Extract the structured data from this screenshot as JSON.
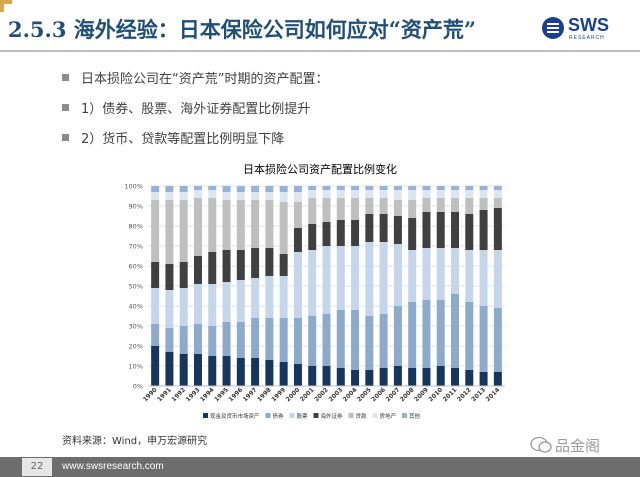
{
  "slide": {
    "title": "2.5.3 海外经验：日本保险公司如何应对“资产荒”",
    "brand": {
      "name": "SWS",
      "sub": "RESEARCH"
    },
    "bullets": [
      "日本损险公司在“资产荒”时期的资产配置：",
      "1）债券、股票、海外证券配置比例提升",
      "2）货币、贷款等配置比例明显下降"
    ],
    "source": "资料来源：Wind，申万宏源研究",
    "page_number": "22",
    "website": "www.swsresearch.com",
    "watermark": "品金阁"
  },
  "colors": {
    "title": "#1f4e79",
    "brand": "#1a3f8f",
    "bullet_text": "#404040",
    "footer": "#6d6d6d"
  },
  "chart_data": {
    "type": "bar",
    "stacked": true,
    "title": "日本损险公司资产配置比例变化",
    "xlabel": "",
    "ylabel": "",
    "ylim": [
      0,
      100
    ],
    "yticks": [
      "0%",
      "10%",
      "20%",
      "30%",
      "40%",
      "50%",
      "60%",
      "70%",
      "80%",
      "90%",
      "100%"
    ],
    "categories": [
      "1990",
      "1991",
      "1992",
      "1993",
      "1994",
      "1995",
      "1996",
      "1997",
      "1998",
      "1999",
      "2000",
      "2001",
      "2002",
      "2003",
      "2004",
      "2005",
      "2006",
      "2007",
      "2008",
      "2009",
      "2010",
      "2011",
      "2012",
      "2013",
      "2014"
    ],
    "legend_position": "bottom",
    "series": [
      {
        "name": "现金及货币市场资产",
        "color": "#17365d",
        "values": [
          20,
          17,
          16,
          16,
          15,
          15,
          14,
          14,
          13,
          12,
          11,
          10,
          10,
          9,
          8,
          8,
          9,
          10,
          9,
          9,
          10,
          9,
          8,
          7,
          7
        ]
      },
      {
        "name": "债券",
        "color": "#8eaacb",
        "values": [
          11,
          12,
          14,
          15,
          15,
          17,
          18,
          20,
          21,
          22,
          23,
          25,
          26,
          29,
          30,
          27,
          27,
          30,
          33,
          34,
          33,
          37,
          34,
          33,
          32
        ]
      },
      {
        "name": "股票",
        "color": "#c5d6ea",
        "values": [
          18,
          19,
          19,
          20,
          21,
          20,
          21,
          20,
          21,
          21,
          33,
          33,
          34,
          32,
          32,
          37,
          36,
          31,
          26,
          26,
          26,
          23,
          26,
          28,
          29
        ]
      },
      {
        "name": "海外证券",
        "color": "#404040",
        "values": [
          13,
          13,
          13,
          14,
          16,
          16,
          15,
          15,
          14,
          11,
          12,
          13,
          12,
          13,
          13,
          14,
          14,
          14,
          16,
          18,
          18,
          18,
          18,
          20,
          21
        ]
      },
      {
        "name": "贷款",
        "color": "#bfbfbf",
        "values": [
          31,
          32,
          31,
          29,
          27,
          25,
          25,
          24,
          24,
          26,
          13,
          13,
          12,
          11,
          11,
          8,
          8,
          8,
          9,
          7,
          7,
          7,
          8,
          6,
          5
        ]
      },
      {
        "name": "房地产",
        "color": "#dde5f0",
        "values": [
          4,
          4,
          4,
          4,
          4,
          4,
          4,
          4,
          4,
          5,
          5,
          4,
          4,
          4,
          4,
          4,
          4,
          5,
          5,
          4,
          4,
          4,
          4,
          4,
          4
        ]
      },
      {
        "name": "其他",
        "color": "#95b3d7",
        "values": [
          3,
          3,
          3,
          2,
          2,
          3,
          3,
          3,
          3,
          3,
          3,
          2,
          2,
          2,
          2,
          2,
          2,
          2,
          2,
          2,
          2,
          2,
          2,
          2,
          2
        ]
      }
    ]
  }
}
